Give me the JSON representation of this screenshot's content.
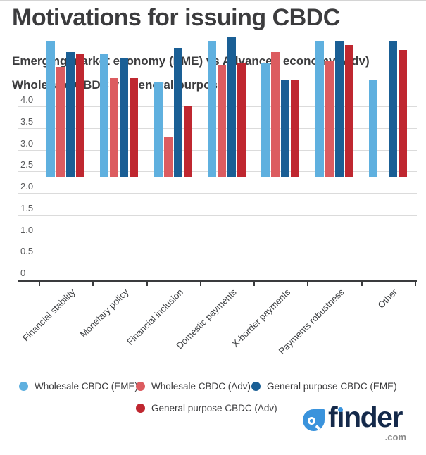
{
  "header": {
    "title": "Motivations for issuing CBDC",
    "subtitle1": "Emerging market economy (EME) vs Advanced economy (Adv)",
    "subtitle2": "Wholesale CBDC vs General purpose"
  },
  "chart_data": {
    "type": "bar",
    "title": "Motivations for issuing CBDC",
    "categories": [
      "Financial stability",
      "Monetary policy",
      "Financial inclusion",
      "Domestic payments",
      "X-border payments",
      "Payments robustness",
      "Other"
    ],
    "series": [
      {
        "name": "Wholesale CBDC (EME)",
        "color": "#5FB0DF",
        "values": [
          3.15,
          2.85,
          2.2,
          3.15,
          2.65,
          3.15,
          2.25
        ]
      },
      {
        "name": "Wholesale CBDC (Adv)",
        "color": "#DC5C60",
        "values": [
          2.55,
          2.3,
          0.95,
          2.6,
          2.9,
          2.7,
          null
        ]
      },
      {
        "name": "General purpose CBDC (EME)",
        "color": "#1A5F95",
        "values": [
          2.9,
          2.75,
          3.0,
          3.25,
          2.25,
          3.15,
          3.15
        ]
      },
      {
        "name": "General purpose CBDC (Adv)",
        "color": "#BF2730",
        "values": [
          2.85,
          2.3,
          1.65,
          2.65,
          2.25,
          3.05,
          2.95
        ]
      }
    ],
    "ylim": [
      0,
      4.0
    ],
    "ytick_step": 0.5,
    "yticks": [
      {
        "label": "4.0",
        "value": 4.0
      },
      {
        "label": "3.5",
        "value": 3.5
      },
      {
        "label": "3.0",
        "value": 3.0
      },
      {
        "label": "2.5",
        "value": 2.5
      },
      {
        "label": "2.0",
        "value": 2.0
      },
      {
        "label": "1.5",
        "value": 1.5
      },
      {
        "label": "1.0",
        "value": 1.0
      },
      {
        "label": "0.5",
        "value": 0.5
      },
      {
        "label": "0",
        "value": 0.0
      }
    ],
    "grid": true,
    "xlabel": "",
    "ylabel": "",
    "legend_position": "bottom"
  },
  "legend": {
    "items": [
      {
        "label": "Wholesale CBDC (EME)",
        "color": "#5FB0DF"
      },
      {
        "label": "Wholesale CBDC (Adv)",
        "color": "#DC5C60"
      },
      {
        "label": "General purpose CBDC (EME)",
        "color": "#1A5F95"
      },
      {
        "label": "General purpose CBDC (Adv)",
        "color": "#BF2730"
      }
    ]
  },
  "branding": {
    "name": "finder",
    "tld": ".com",
    "icon": "magnifier-drop-icon",
    "navy": "#14294A",
    "blue": "#3A93DC"
  }
}
